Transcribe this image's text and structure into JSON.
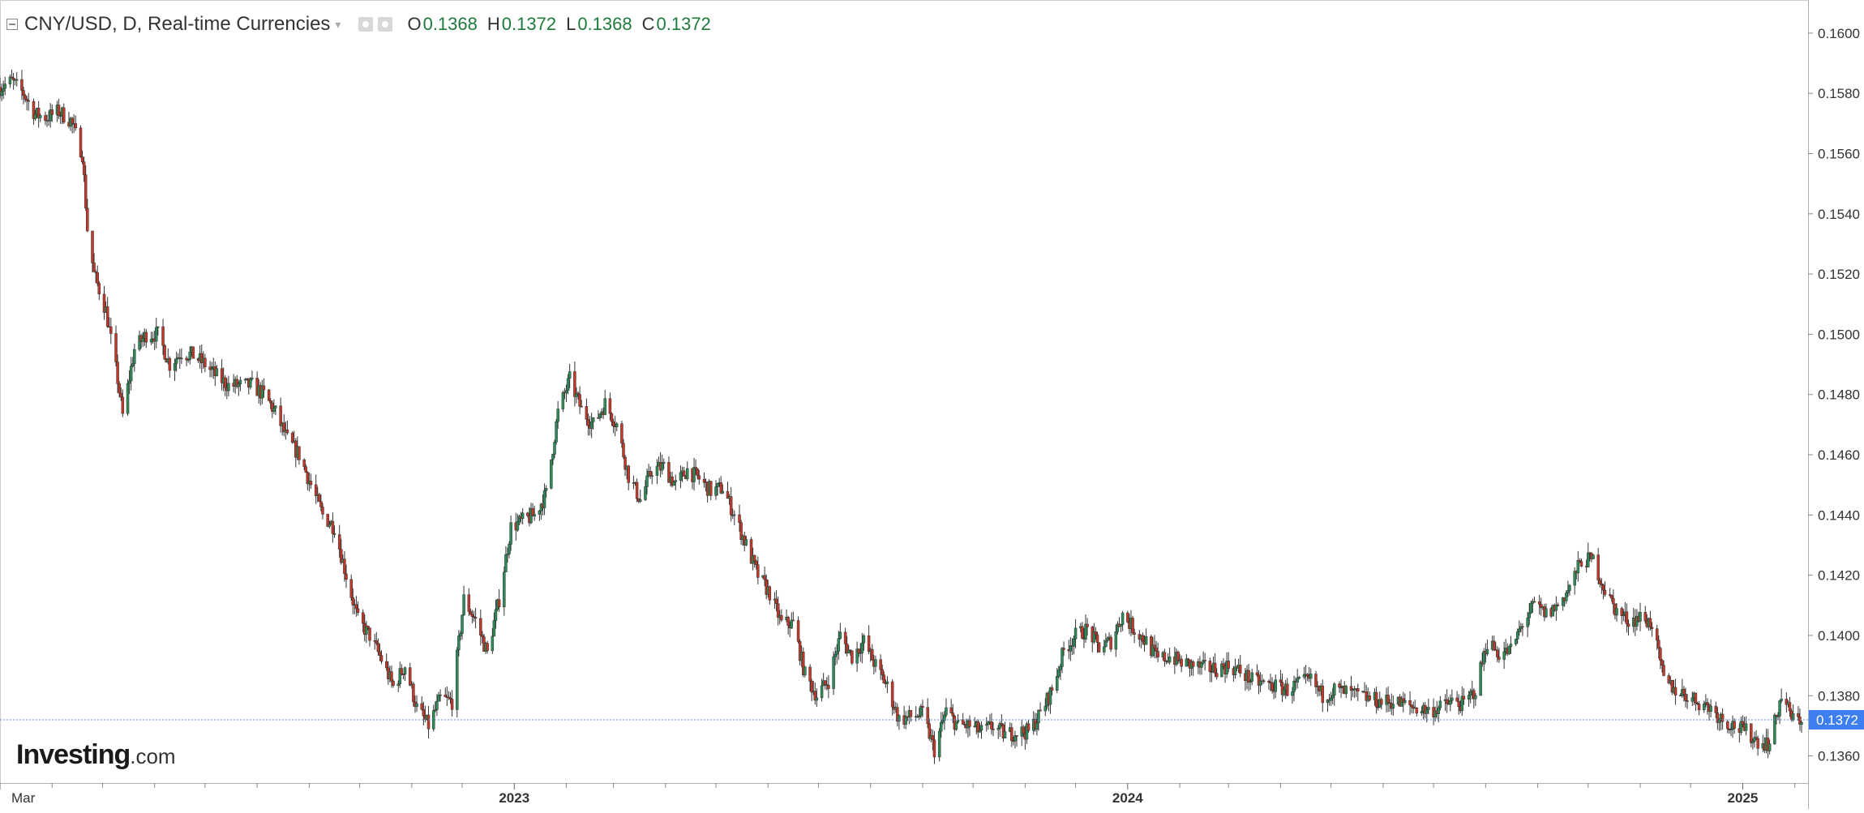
{
  "header": {
    "title": "CNY/USD, D, Real-time Currencies",
    "open_label": "O",
    "open_value": "0.1368",
    "high_label": "H",
    "high_value": "0.1372",
    "low_label": "L",
    "low_value": "0.1368",
    "close_label": "C",
    "close_value": "0.1372"
  },
  "logo": {
    "brand": "Investing",
    "suffix": ".com"
  },
  "colors": {
    "up": "#2e8b57",
    "down": "#c0392b",
    "wick": "#333333",
    "price_badge": "#3d7ff0",
    "last_price_line": "#5b8fd6"
  },
  "chart_data": {
    "type": "candlestick",
    "title": "CNY/USD, D, Real-time Currencies",
    "x_range": [
      "2022-03-01",
      "2025-02-05"
    ],
    "ylim": [
      0.1351,
      0.1611
    ],
    "y_ticks": [
      "0.1600",
      "0.1580",
      "0.1560",
      "0.1540",
      "0.1520",
      "0.1500",
      "0.1480",
      "0.1460",
      "0.1440",
      "0.1420",
      "0.1400",
      "0.1380",
      "0.1360"
    ],
    "x_labels": [
      {
        "date": "2022-03-01",
        "label": "Mar"
      },
      {
        "date": "2023-01-01",
        "label": "2023"
      },
      {
        "date": "2024-01-01",
        "label": "2024"
      },
      {
        "date": "2025-01-01",
        "label": "2025"
      }
    ],
    "x_minor_ticks": [
      "2022-04-01",
      "2022-05-01",
      "2022-06-01",
      "2022-07-01",
      "2022-08-01",
      "2022-09-01",
      "2022-10-01",
      "2022-11-01",
      "2022-12-01",
      "2023-02-01",
      "2023-03-01",
      "2023-04-01",
      "2023-05-01",
      "2023-06-01",
      "2023-07-01",
      "2023-08-01",
      "2023-09-01",
      "2023-10-01",
      "2023-11-01",
      "2023-12-01",
      "2024-02-01",
      "2024-03-01",
      "2024-04-01",
      "2024-05-01",
      "2024-06-01",
      "2024-07-01",
      "2024-08-01",
      "2024-09-01",
      "2024-10-01",
      "2024-11-01",
      "2024-12-01",
      "2025-02-01"
    ],
    "last_price": 0.1372,
    "last_price_label": "0.1372",
    "series_close": [
      [
        "2022-03-01",
        0.1582
      ],
      [
        "2022-03-08",
        0.1584
      ],
      [
        "2022-03-15",
        0.158
      ],
      [
        "2022-03-22",
        0.1573
      ],
      [
        "2022-03-29",
        0.1572
      ],
      [
        "2022-04-05",
        0.1574
      ],
      [
        "2022-04-12",
        0.1571
      ],
      [
        "2022-04-19",
        0.156
      ],
      [
        "2022-04-22",
        0.1535
      ],
      [
        "2022-04-26",
        0.152
      ],
      [
        "2022-05-03",
        0.1508
      ],
      [
        "2022-05-10",
        0.1485
      ],
      [
        "2022-05-13",
        0.1473
      ],
      [
        "2022-05-20",
        0.1495
      ],
      [
        "2022-05-27",
        0.15
      ],
      [
        "2022-06-03",
        0.15
      ],
      [
        "2022-06-10",
        0.149
      ],
      [
        "2022-06-17",
        0.1494
      ],
      [
        "2022-06-24",
        0.1493
      ],
      [
        "2022-07-01",
        0.149
      ],
      [
        "2022-07-08",
        0.1486
      ],
      [
        "2022-07-15",
        0.1483
      ],
      [
        "2022-07-22",
        0.1483
      ],
      [
        "2022-07-29",
        0.1483
      ],
      [
        "2022-08-05",
        0.148
      ],
      [
        "2022-08-12",
        0.1474
      ],
      [
        "2022-08-19",
        0.1465
      ],
      [
        "2022-08-26",
        0.146
      ],
      [
        "2022-09-02",
        0.145
      ],
      [
        "2022-09-09",
        0.144
      ],
      [
        "2022-09-16",
        0.1436
      ],
      [
        "2022-09-23",
        0.142
      ],
      [
        "2022-09-30",
        0.1405
      ],
      [
        "2022-10-07",
        0.14
      ],
      [
        "2022-10-14",
        0.1392
      ],
      [
        "2022-10-21",
        0.1383
      ],
      [
        "2022-10-28",
        0.139
      ],
      [
        "2022-11-04",
        0.1376
      ],
      [
        "2022-11-11",
        0.137
      ],
      [
        "2022-11-18",
        0.1379
      ],
      [
        "2022-11-25",
        0.1378
      ],
      [
        "2022-12-02",
        0.1412
      ],
      [
        "2022-12-09",
        0.1405
      ],
      [
        "2022-12-16",
        0.1394
      ],
      [
        "2022-12-23",
        0.1412
      ],
      [
        "2022-12-30",
        0.1436
      ],
      [
        "2023-01-06",
        0.1438
      ],
      [
        "2023-01-13",
        0.144
      ],
      [
        "2023-01-20",
        0.1447
      ],
      [
        "2023-01-27",
        0.1474
      ],
      [
        "2023-02-03",
        0.1485
      ],
      [
        "2023-02-10",
        0.1475
      ],
      [
        "2023-02-17",
        0.147
      ],
      [
        "2023-02-24",
        0.1477
      ],
      [
        "2023-03-03",
        0.147
      ],
      [
        "2023-03-10",
        0.1453
      ],
      [
        "2023-03-17",
        0.1445
      ],
      [
        "2023-03-24",
        0.1455
      ],
      [
        "2023-03-31",
        0.1456
      ],
      [
        "2023-04-07",
        0.145
      ],
      [
        "2023-04-14",
        0.1455
      ],
      [
        "2023-04-21",
        0.1452
      ],
      [
        "2023-04-28",
        0.1448
      ],
      [
        "2023-05-05",
        0.1449
      ],
      [
        "2023-05-12",
        0.144
      ],
      [
        "2023-05-19",
        0.143
      ],
      [
        "2023-05-26",
        0.142
      ],
      [
        "2023-06-02",
        0.1414
      ],
      [
        "2023-06-09",
        0.1404
      ],
      [
        "2023-06-16",
        0.1404
      ],
      [
        "2023-06-23",
        0.1387
      ],
      [
        "2023-06-30",
        0.138
      ],
      [
        "2023-07-07",
        0.1385
      ],
      [
        "2023-07-14",
        0.14
      ],
      [
        "2023-07-21",
        0.1393
      ],
      [
        "2023-07-28",
        0.1398
      ],
      [
        "2023-08-04",
        0.139
      ],
      [
        "2023-08-11",
        0.1383
      ],
      [
        "2023-08-18",
        0.1372
      ],
      [
        "2023-08-25",
        0.1373
      ],
      [
        "2023-09-01",
        0.1374
      ],
      [
        "2023-09-08",
        0.1362
      ],
      [
        "2023-09-15",
        0.1375
      ],
      [
        "2023-09-22",
        0.137
      ],
      [
        "2023-09-29",
        0.137
      ],
      [
        "2023-10-06",
        0.1368
      ],
      [
        "2023-10-13",
        0.137
      ],
      [
        "2023-10-20",
        0.1367
      ],
      [
        "2023-10-27",
        0.1368
      ],
      [
        "2023-11-03",
        0.1368
      ],
      [
        "2023-11-10",
        0.1374
      ],
      [
        "2023-11-17",
        0.1382
      ],
      [
        "2023-11-24",
        0.1395
      ],
      [
        "2023-12-01",
        0.14
      ],
      [
        "2023-12-08",
        0.1402
      ],
      [
        "2023-12-15",
        0.1396
      ],
      [
        "2023-12-22",
        0.1398
      ],
      [
        "2023-12-29",
        0.1407
      ],
      [
        "2024-01-05",
        0.1402
      ],
      [
        "2024-01-12",
        0.1398
      ],
      [
        "2024-01-19",
        0.1392
      ],
      [
        "2024-01-26",
        0.1393
      ],
      [
        "2024-02-02",
        0.1391
      ],
      [
        "2024-02-09",
        0.139
      ],
      [
        "2024-02-16",
        0.1389
      ],
      [
        "2024-02-23",
        0.1389
      ],
      [
        "2024-03-01",
        0.139
      ],
      [
        "2024-03-08",
        0.1388
      ],
      [
        "2024-03-15",
        0.1385
      ],
      [
        "2024-03-22",
        0.1384
      ],
      [
        "2024-03-29",
        0.1383
      ],
      [
        "2024-04-05",
        0.1382
      ],
      [
        "2024-04-12",
        0.1384
      ],
      [
        "2024-04-19",
        0.1385
      ],
      [
        "2024-04-26",
        0.138
      ],
      [
        "2024-05-03",
        0.1382
      ],
      [
        "2024-05-10",
        0.1381
      ],
      [
        "2024-05-17",
        0.138
      ],
      [
        "2024-05-24",
        0.1379
      ],
      [
        "2024-05-31",
        0.1378
      ],
      [
        "2024-06-07",
        0.1378
      ],
      [
        "2024-06-14",
        0.1377
      ],
      [
        "2024-06-21",
        0.1376
      ],
      [
        "2024-06-28",
        0.1375
      ],
      [
        "2024-07-05",
        0.1376
      ],
      [
        "2024-07-12",
        0.1378
      ],
      [
        "2024-07-19",
        0.1377
      ],
      [
        "2024-07-26",
        0.1382
      ],
      [
        "2024-08-02",
        0.1398
      ],
      [
        "2024-08-09",
        0.1394
      ],
      [
        "2024-08-16",
        0.1395
      ],
      [
        "2024-08-23",
        0.1404
      ],
      [
        "2024-08-30",
        0.141
      ],
      [
        "2024-09-06",
        0.1407
      ],
      [
        "2024-09-13",
        0.141
      ],
      [
        "2024-09-20",
        0.1416
      ],
      [
        "2024-09-27",
        0.1425
      ],
      [
        "2024-10-04",
        0.1425
      ],
      [
        "2024-10-11",
        0.1415
      ],
      [
        "2024-10-18",
        0.1408
      ],
      [
        "2024-10-25",
        0.1405
      ],
      [
        "2024-11-01",
        0.1406
      ],
      [
        "2024-11-08",
        0.1404
      ],
      [
        "2024-11-15",
        0.1385
      ],
      [
        "2024-11-22",
        0.1382
      ],
      [
        "2024-11-29",
        0.138
      ],
      [
        "2024-12-06",
        0.1378
      ],
      [
        "2024-12-13",
        0.1376
      ],
      [
        "2024-12-20",
        0.1372
      ],
      [
        "2024-12-27",
        0.137
      ],
      [
        "2025-01-03",
        0.1368
      ],
      [
        "2025-01-10",
        0.1365
      ],
      [
        "2025-01-17",
        0.1364
      ],
      [
        "2025-01-24",
        0.138
      ],
      [
        "2025-01-31",
        0.1372
      ],
      [
        "2025-02-05",
        0.1372
      ]
    ]
  }
}
